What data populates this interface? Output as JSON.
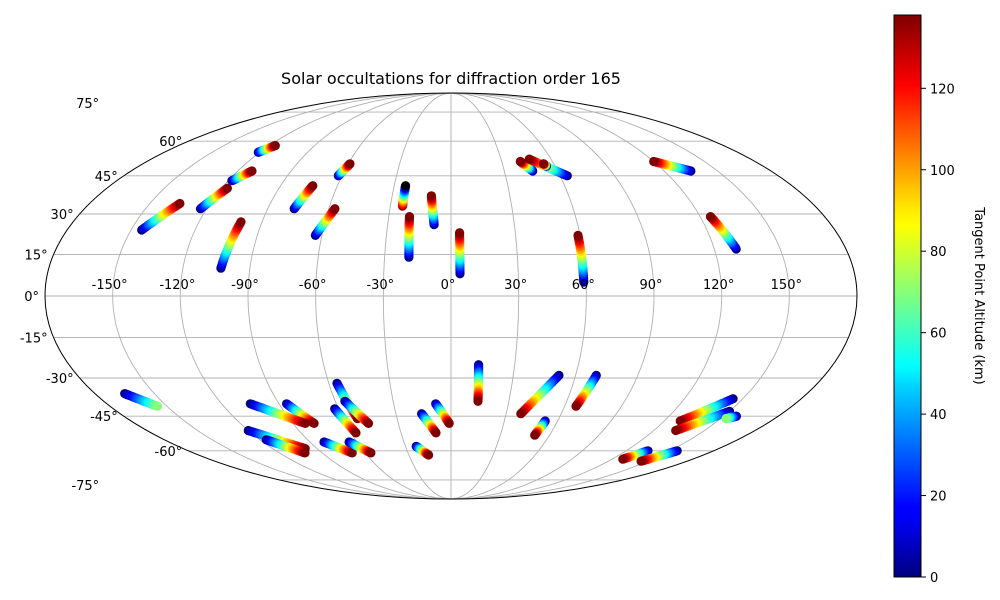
{
  "chart_data": {
    "type": "scatter",
    "projection": "mollweide",
    "title": "Solar occultations for diffraction order 165",
    "grid": true,
    "lon_ticks": [
      "-150°",
      "-120°",
      "-90°",
      "-60°",
      "-30°",
      "0°",
      "30°",
      "60°",
      "90°",
      "120°",
      "150°"
    ],
    "lat_ticks": [
      "75°",
      "60°",
      "45°",
      "30°",
      "15°",
      "0°",
      "-15°",
      "-30°",
      "-45°",
      "-60°",
      "-75°"
    ],
    "colorbar": {
      "label": "Tangent Point Altitude (km)",
      "colormap": "jet",
      "range": [
        0,
        138
      ],
      "ticks": [
        "0",
        "20",
        "40",
        "60",
        "80",
        "100",
        "120"
      ]
    },
    "tracks": [
      {
        "lon0": -121,
        "lat0": 55,
        "alt0": 0,
        "lon1": -116,
        "lat1": 58,
        "alt1": 138
      },
      {
        "lon0": -118,
        "lat0": 43,
        "alt0": 0,
        "lon1": -112,
        "lat1": 47,
        "alt1": 138
      },
      {
        "lon0": -123,
        "lat0": 32,
        "alt0": 0,
        "lon1": -117,
        "lat1": 40,
        "alt1": 138
      },
      {
        "lon0": -145,
        "lat0": 24,
        "alt0": 0,
        "lon1": -135,
        "lat1": 34,
        "alt1": 138
      },
      {
        "lon0": -103,
        "lat0": 10,
        "alt0": 0,
        "lon1": -100,
        "lat1": 27,
        "alt1": 138
      },
      {
        "lon0": -77,
        "lat0": 32,
        "alt0": 0,
        "lon1": -73,
        "lat1": 41,
        "alt1": 138
      },
      {
        "lon0": -62,
        "lat0": 45,
        "alt0": 0,
        "lon1": -59,
        "lat1": 50,
        "alt1": 138
      },
      {
        "lon0": -63,
        "lat0": 22,
        "alt0": 0,
        "lon1": -57,
        "lat1": 32,
        "alt1": 138
      },
      {
        "lon0": -24,
        "lat0": 33,
        "alt0": 138,
        "lon1": -24,
        "lat1": 41,
        "alt1": 138,
        "alt_min": 0,
        "alt_min_at": 1
      },
      {
        "lon0": -19,
        "lat0": 14,
        "alt0": 0,
        "lon1": -20,
        "lat1": 29,
        "alt1": 138
      },
      {
        "lon0": -8,
        "lat0": 26,
        "alt0": 0,
        "lon1": -10,
        "lat1": 37,
        "alt1": 138
      },
      {
        "lon0": 4,
        "lat0": 8,
        "alt0": 0,
        "lon1": 4,
        "lat1": 23,
        "alt1": 138
      },
      {
        "lon0": 46,
        "lat0": 47,
        "alt0": 0,
        "lon1": 41,
        "lat1": 51,
        "alt1": 138
      },
      {
        "lon0": 64,
        "lat0": 45,
        "alt0": 0,
        "lon1": 47,
        "lat1": 52,
        "alt1": 138
      },
      {
        "lon0": 55,
        "lat0": 49,
        "alt0": 0,
        "lon1": 54,
        "lat1": 50,
        "alt1": 138
      },
      {
        "lon0": 59,
        "lat0": 5,
        "alt0": 0,
        "lon1": 59,
        "lat1": 22,
        "alt1": 138
      },
      {
        "lon0": 135,
        "lat0": 47,
        "alt0": 0,
        "lon1": 120,
        "lat1": 51,
        "alt1": 138
      },
      {
        "lon0": 130,
        "lat0": 17,
        "alt0": 0,
        "lon1": 125,
        "lat1": 29,
        "alt1": 138
      },
      {
        "lon0": 13,
        "lat0": -25,
        "alt0": 0,
        "lon1": 14,
        "lat1": -39,
        "alt1": 138
      },
      {
        "lon0": 52,
        "lat0": -29,
        "alt0": 0,
        "lon1": 38,
        "lat1": -44,
        "alt1": 138
      },
      {
        "lon0": 53,
        "lat0": -47,
        "alt0": 0,
        "lon1": 51,
        "lat1": -53,
        "alt1": 138
      },
      {
        "lon0": 70,
        "lat0": -29,
        "alt0": 0,
        "lon1": 66,
        "lat1": -41,
        "alt1": 138
      },
      {
        "lon0": -56,
        "lat0": -32,
        "alt0": 0,
        "lon1": -52,
        "lat1": -46,
        "alt1": 138
      },
      {
        "lon0": -55,
        "lat0": -39,
        "alt0": 0,
        "lon1": -47,
        "lat1": -48,
        "alt1": 138
      },
      {
        "lon0": -62,
        "lat0": -42,
        "alt0": 0,
        "lon1": -57,
        "lat1": -52,
        "alt1": 138
      },
      {
        "lon0": -8,
        "lat0": -40,
        "alt0": 0,
        "lon1": -1,
        "lat1": -48,
        "alt1": 138
      },
      {
        "lon0": -16,
        "lat0": -44,
        "alt0": 0,
        "lon1": -9,
        "lat1": -52,
        "alt1": 138
      },
      {
        "lon0": -23,
        "lat0": -58,
        "alt0": 0,
        "lon1": -16,
        "lat1": -62,
        "alt1": 138
      },
      {
        "lon0": -86,
        "lat0": -40,
        "alt0": 0,
        "lon1": -78,
        "lat1": -48,
        "alt1": 138
      },
      {
        "lon0": -105,
        "lat0": -40,
        "alt0": 0,
        "lon1": -83,
        "lat1": -48,
        "alt1": 138
      },
      {
        "lon0": -81,
        "lat0": -56,
        "alt0": 0,
        "lon1": -69,
        "lat1": -61,
        "alt1": 138
      },
      {
        "lon0": -65,
        "lat0": -56,
        "alt0": 0,
        "lon1": -56,
        "lat1": -61,
        "alt1": 138
      },
      {
        "lon0": -120,
        "lat0": -51,
        "alt0": 0,
        "lon1": -98,
        "lat1": -59,
        "alt1": 138
      },
      {
        "lon0": -116,
        "lat0": -55,
        "alt0": 0,
        "lon1": -102,
        "lat1": -61,
        "alt1": 138
      },
      {
        "lon0": -165,
        "lat0": -36,
        "alt0": 0,
        "lon1": -155,
        "lat1": -41,
        "alt1": 70
      },
      {
        "lon0": 145,
        "lat0": -38,
        "alt0": 0,
        "lon1": 129,
        "lat1": -47,
        "alt1": 138
      },
      {
        "lon0": 150,
        "lat0": -43,
        "alt0": 0,
        "lon1": 133,
        "lat1": -51,
        "alt1": 138
      },
      {
        "lon0": 157,
        "lat0": -45,
        "alt0": 0,
        "lon1": 153,
        "lat1": -46,
        "alt1": 70
      },
      {
        "lon0": 135,
        "lat0": -60,
        "alt0": 0,
        "lon1": 128,
        "lat1": -64,
        "alt1": 138
      },
      {
        "lon0": 155,
        "lat0": -60,
        "alt0": 0,
        "lon1": 145,
        "lat1": -65,
        "alt1": 138
      }
    ]
  }
}
